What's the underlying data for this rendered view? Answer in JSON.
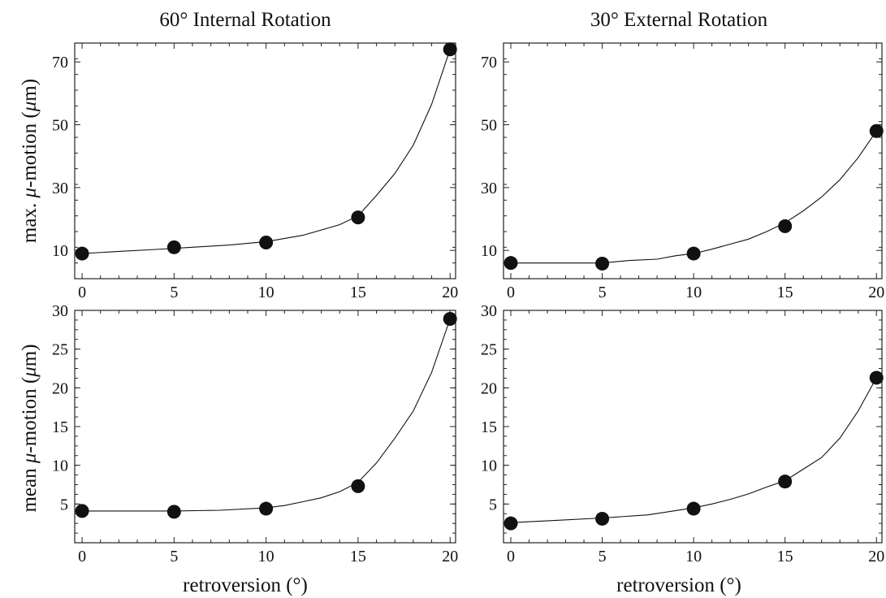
{
  "colors": {
    "ink": "#111111",
    "background": "#ffffff"
  },
  "labels": {
    "col_title_left": "60° Internal Rotation",
    "col_title_right": "30° External Rotation",
    "ylabel_top_prefix": "max. ",
    "ylabel_bottom_prefix": "mean ",
    "ylabel_mu": "μ",
    "ylabel_suffix": "-motion (",
    "ylabel_unit_mu": "μ",
    "ylabel_unit_rest": "m)",
    "xlabel": "retroversion (°)"
  },
  "chart_data": [
    {
      "type": "line",
      "title": "60° Internal Rotation",
      "xlabel": "",
      "ylabel": "max. μ-motion (μm)",
      "xlim": [
        -0.4,
        20.3
      ],
      "ylim": [
        1,
        76
      ],
      "xticks": [
        0,
        5,
        10,
        15,
        20
      ],
      "yticks": [
        10,
        30,
        50,
        70
      ],
      "x": [
        0,
        5,
        10,
        15,
        20
      ],
      "values": [
        9,
        11,
        12.5,
        20.5,
        74
      ],
      "fit_curve": {
        "x": [
          0,
          2,
          4,
          6,
          8,
          10,
          12,
          14,
          15,
          16,
          17,
          18,
          19,
          20
        ],
        "y": [
          9,
          9.7,
          10.3,
          11.0,
          11.7,
          12.8,
          14.8,
          18.2,
          21.0,
          27.5,
          34.5,
          43.5,
          56.5,
          74
        ]
      }
    },
    {
      "type": "line",
      "title": "30° External Rotation",
      "xlabel": "",
      "ylabel": "",
      "xlim": [
        -0.4,
        20.3
      ],
      "ylim": [
        1,
        76
      ],
      "xticks": [
        0,
        5,
        10,
        15,
        20
      ],
      "yticks": [
        10,
        30,
        50,
        70
      ],
      "x": [
        0,
        5,
        10,
        15,
        20
      ],
      "values": [
        6,
        5.8,
        9,
        17.7,
        48
      ],
      "fit_curve": {
        "x": [
          0,
          2.5,
          5,
          6.5,
          8,
          9,
          10,
          11,
          12,
          13,
          14,
          15,
          16,
          17,
          18,
          19,
          20
        ],
        "y": [
          6,
          6,
          6,
          6.8,
          7.2,
          8.3,
          9.0,
          10.4,
          12.0,
          13.6,
          16.0,
          18.8,
          22.6,
          27.0,
          32.5,
          39.5,
          48
        ]
      }
    },
    {
      "type": "line",
      "title": "",
      "xlabel": "retroversion (°)",
      "ylabel": "mean μ-motion (μm)",
      "xlim": [
        -0.4,
        20.3
      ],
      "ylim": [
        0,
        30
      ],
      "xticks": [
        0,
        5,
        10,
        15,
        20
      ],
      "yticks": [
        5,
        10,
        15,
        20,
        25,
        30
      ],
      "x": [
        0,
        5,
        10,
        15,
        20
      ],
      "values": [
        4.1,
        4,
        4.4,
        7.3,
        28.9
      ],
      "fit_curve": {
        "x": [
          0,
          2.5,
          5,
          7.5,
          10,
          11,
          12,
          13,
          14,
          15,
          16,
          17,
          18,
          19,
          20
        ],
        "y": [
          4.1,
          4.1,
          4.1,
          4.2,
          4.5,
          4.8,
          5.3,
          5.8,
          6.6,
          7.8,
          10.3,
          13.5,
          17.0,
          22.0,
          28.9
        ]
      }
    },
    {
      "type": "line",
      "title": "",
      "xlabel": "retroversion (°)",
      "ylabel": "",
      "xlim": [
        -0.4,
        20.3
      ],
      "ylim": [
        0,
        30
      ],
      "xticks": [
        0,
        5,
        10,
        15,
        20
      ],
      "yticks": [
        5,
        10,
        15,
        20,
        25,
        30
      ],
      "x": [
        0,
        5,
        10,
        15,
        20
      ],
      "values": [
        2.5,
        3.1,
        4.4,
        7.9,
        21.3
      ],
      "fit_curve": {
        "x": [
          0,
          2.5,
          5,
          7.5,
          10,
          11,
          12,
          13,
          14,
          15,
          16,
          17,
          18,
          19,
          20
        ],
        "y": [
          2.6,
          2.9,
          3.2,
          3.6,
          4.5,
          5.0,
          5.6,
          6.3,
          7.2,
          8.0,
          9.5,
          11.0,
          13.5,
          17.0,
          21.3
        ]
      }
    }
  ]
}
